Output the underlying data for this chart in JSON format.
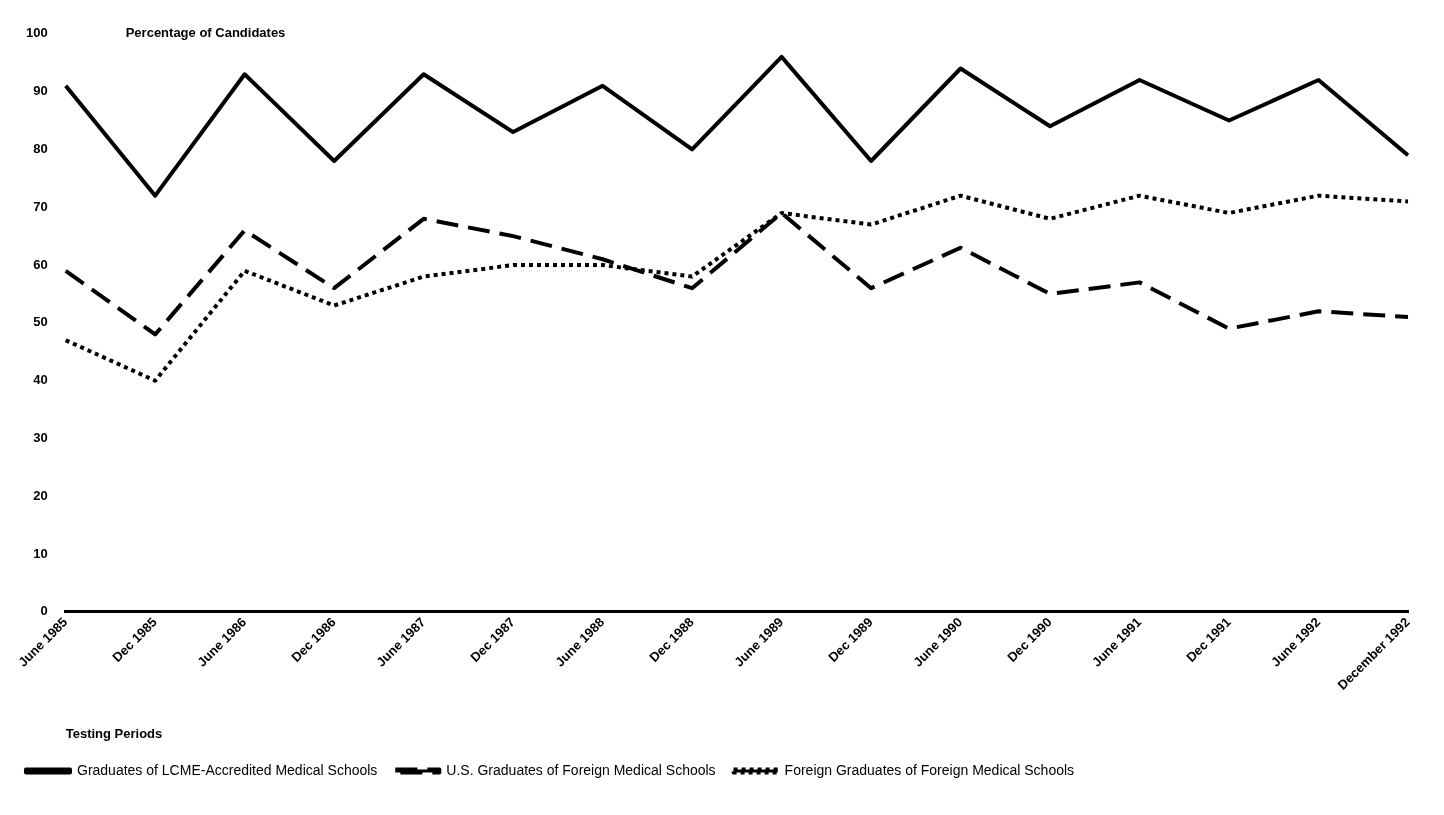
{
  "chart_data": {
    "type": "line",
    "ylabel": "Percentage of Candidates",
    "xlabel": "Testing Periods",
    "categories": [
      "June 1985",
      "Dec 1985",
      "June 1986",
      "Dec 1986",
      "June 1987",
      "Dec 1987",
      "June 1988",
      "Dec 1988",
      "June 1989",
      "Dec 1989",
      "June 1990",
      "Dec 1990",
      "June 1991",
      "Dec 1991",
      "June 1992",
      "December 1992"
    ],
    "series": [
      {
        "name": "Graduates of LCME-Accredited Medical Schools",
        "color": "#000000",
        "line_style": "solid",
        "values": [
          91,
          72,
          93,
          78,
          93,
          83,
          91,
          80,
          96,
          78,
          94,
          84,
          92,
          85,
          92,
          79
        ]
      },
      {
        "name": "U.S. Graduates of Foreign Medical Schools",
        "color": "#000000",
        "line_style": "dashed",
        "values": [
          59,
          48,
          66,
          56,
          68,
          65,
          61,
          56,
          69,
          56,
          63,
          55,
          57,
          49,
          52,
          51
        ]
      },
      {
        "name": "Foreign Graduates of Foreign Medical Schools",
        "color": "#000000",
        "line_style": "dotted",
        "values": [
          47,
          40,
          59,
          53,
          58,
          60,
          60,
          58,
          69,
          67,
          72,
          68,
          72,
          69,
          72,
          71
        ]
      }
    ],
    "ylim": [
      0,
      100
    ],
    "yticks": [
      0,
      10,
      20,
      30,
      40,
      50,
      60,
      70,
      80,
      90,
      100
    ],
    "grid": false,
    "legend": "bottom",
    "marker": "none"
  }
}
